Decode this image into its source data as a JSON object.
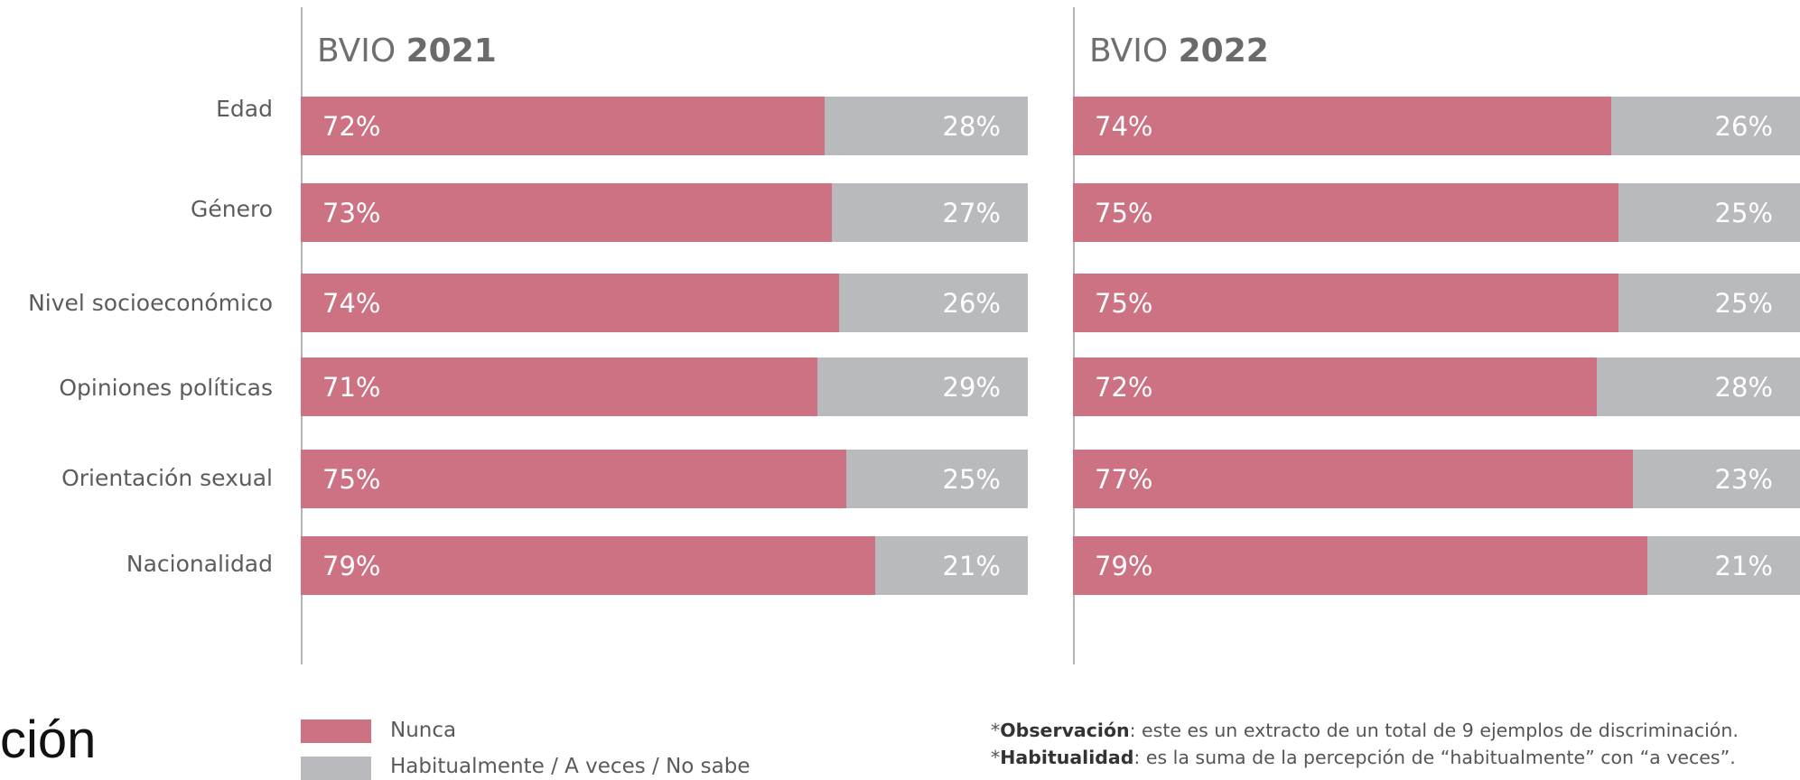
{
  "colors": {
    "nunca": "#cd7282",
    "habitual": "#b9babd",
    "axis": "#b5b5b5"
  },
  "chart_data": {
    "type": "bar",
    "stacked": true,
    "orientation": "horizontal",
    "categories": [
      "Edad",
      "Género",
      "Nivel socioeconómico",
      "Opiniones políticas",
      "Orientación sexual",
      "Nacionalidad"
    ],
    "panels": [
      {
        "title_prefix": "BVIO",
        "title_year": "2021",
        "series": [
          {
            "name": "Nunca",
            "values": [
              72,
              73,
              74,
              71,
              75,
              79
            ],
            "labels": [
              "72%",
              "73%",
              "74%",
              "71%",
              "75%",
              "79%"
            ]
          },
          {
            "name": "Habitualmente / A veces / No sabe",
            "values": [
              28,
              27,
              26,
              29,
              25,
              21
            ],
            "labels": [
              "28%",
              "27%",
              "26%",
              "29%",
              "25%",
              "21%"
            ]
          }
        ]
      },
      {
        "title_prefix": "BVIO",
        "title_year": "2022",
        "series": [
          {
            "name": "Nunca",
            "values": [
              74,
              75,
              75,
              72,
              77,
              79
            ],
            "labels": [
              "74%",
              "75%",
              "75%",
              "72%",
              "77%",
              "79%"
            ]
          },
          {
            "name": "Habitualmente / A veces / No sabe",
            "values": [
              26,
              25,
              25,
              28,
              23,
              21
            ],
            "labels": [
              "26%",
              "25%",
              "25%",
              "28%",
              "23%",
              "21%"
            ]
          }
        ]
      }
    ],
    "xlim": [
      0,
      100
    ],
    "legend_position": "bottom-left"
  },
  "legend": {
    "nunca": "Nunca",
    "habitual": "Habitualmente / A veces / No sabe"
  },
  "side_text": "ción",
  "notes": [
    {
      "marker": "*",
      "bold": "Observación",
      "text": ": este es un extracto de un total de 9 ejemplos de discriminación."
    },
    {
      "marker": "*",
      "bold": "Habitualidad",
      "text": ": es la suma de la percepción de “habitualmente” con “a veces”."
    }
  ]
}
